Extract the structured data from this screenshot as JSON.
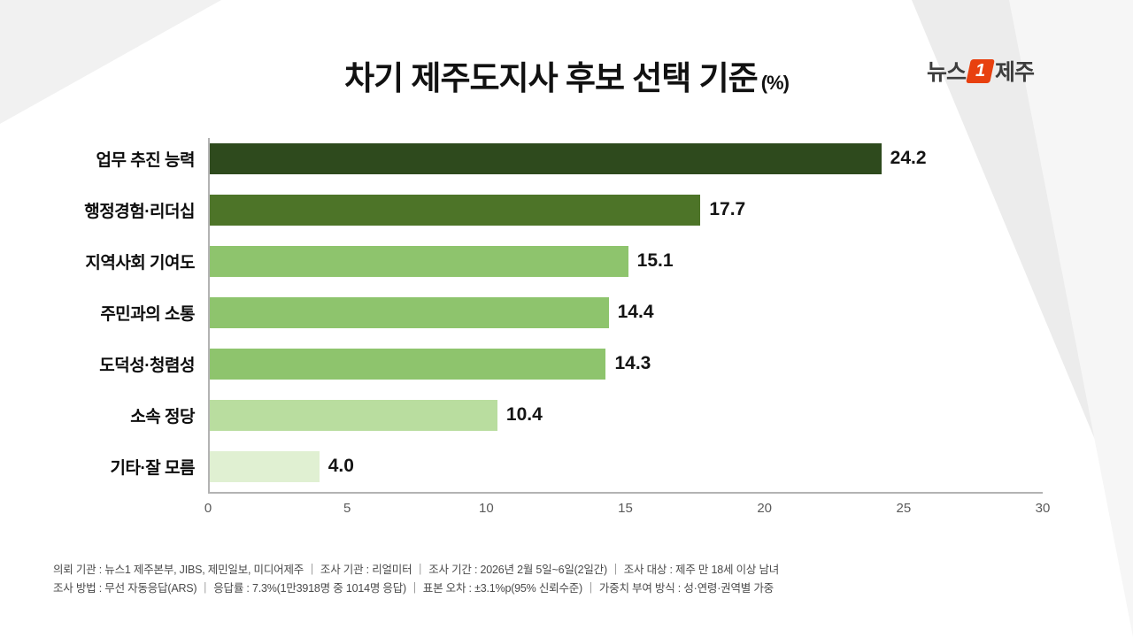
{
  "title": {
    "text": "차기 제주도지사 후보 선택 기준",
    "unit": "(%)"
  },
  "logo": {
    "left": "뉴스",
    "one": "1",
    "right": "제주"
  },
  "chart_data": {
    "type": "bar",
    "orientation": "horizontal",
    "title": "차기 제주도지사 후보 선택 기준 (%)",
    "categories": [
      "업무 추진 능력",
      "행정경험·리더십",
      "지역사회 기여도",
      "주민과의 소통",
      "도덕성·청렴성",
      "소속 정당",
      "기타·잘 모름"
    ],
    "values": [
      24.2,
      17.7,
      15.1,
      14.4,
      14.3,
      10.4,
      4.0
    ],
    "value_labels": [
      "24.2",
      "17.7",
      "15.1",
      "14.4",
      "14.3",
      "10.4",
      "4.0"
    ],
    "bar_colors": [
      "#2e4a1d",
      "#4d7428",
      "#8ec46d",
      "#8ec46d",
      "#8ec46d",
      "#b9dd9f",
      "#e0f0d2"
    ],
    "xlim": [
      0,
      30
    ],
    "x_ticks": [
      "0",
      "5",
      "10",
      "15",
      "20",
      "25",
      "30"
    ],
    "grid": false,
    "legend": false
  },
  "footnote": {
    "line1": "의뢰 기관 : 뉴스1 제주본부, JIBS, 제민일보, 미디어제주 ｜ 조사 기관 : 리얼미터 ｜ 조사 기간 : 2026년 2월 5일~6일(2일간) ｜ 조사 대상 : 제주 만 18세 이상 남녀",
    "line2": "조사 방법 : 무선 자동응답(ARS) ｜ 응답률 : 7.3%(1만3918명 중 1014명 응답) ｜ 표본 오차 : ±3.1%p(95% 신뢰수준) ｜ 가중치 부여 방식 : 성·연령·권역별 가중"
  }
}
